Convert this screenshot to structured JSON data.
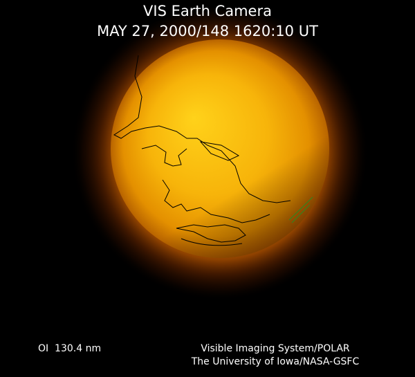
{
  "header": {
    "title": "VIS Earth Camera",
    "timestamp": "MAY 27, 2000/148 1620:10 UT"
  },
  "footer": {
    "wavelength": "OI  130.4 nm",
    "credit_lines": [
      "Visible Imaging System/POLAR",
      "The University of Iowa/NASA-GSFC"
    ]
  }
}
